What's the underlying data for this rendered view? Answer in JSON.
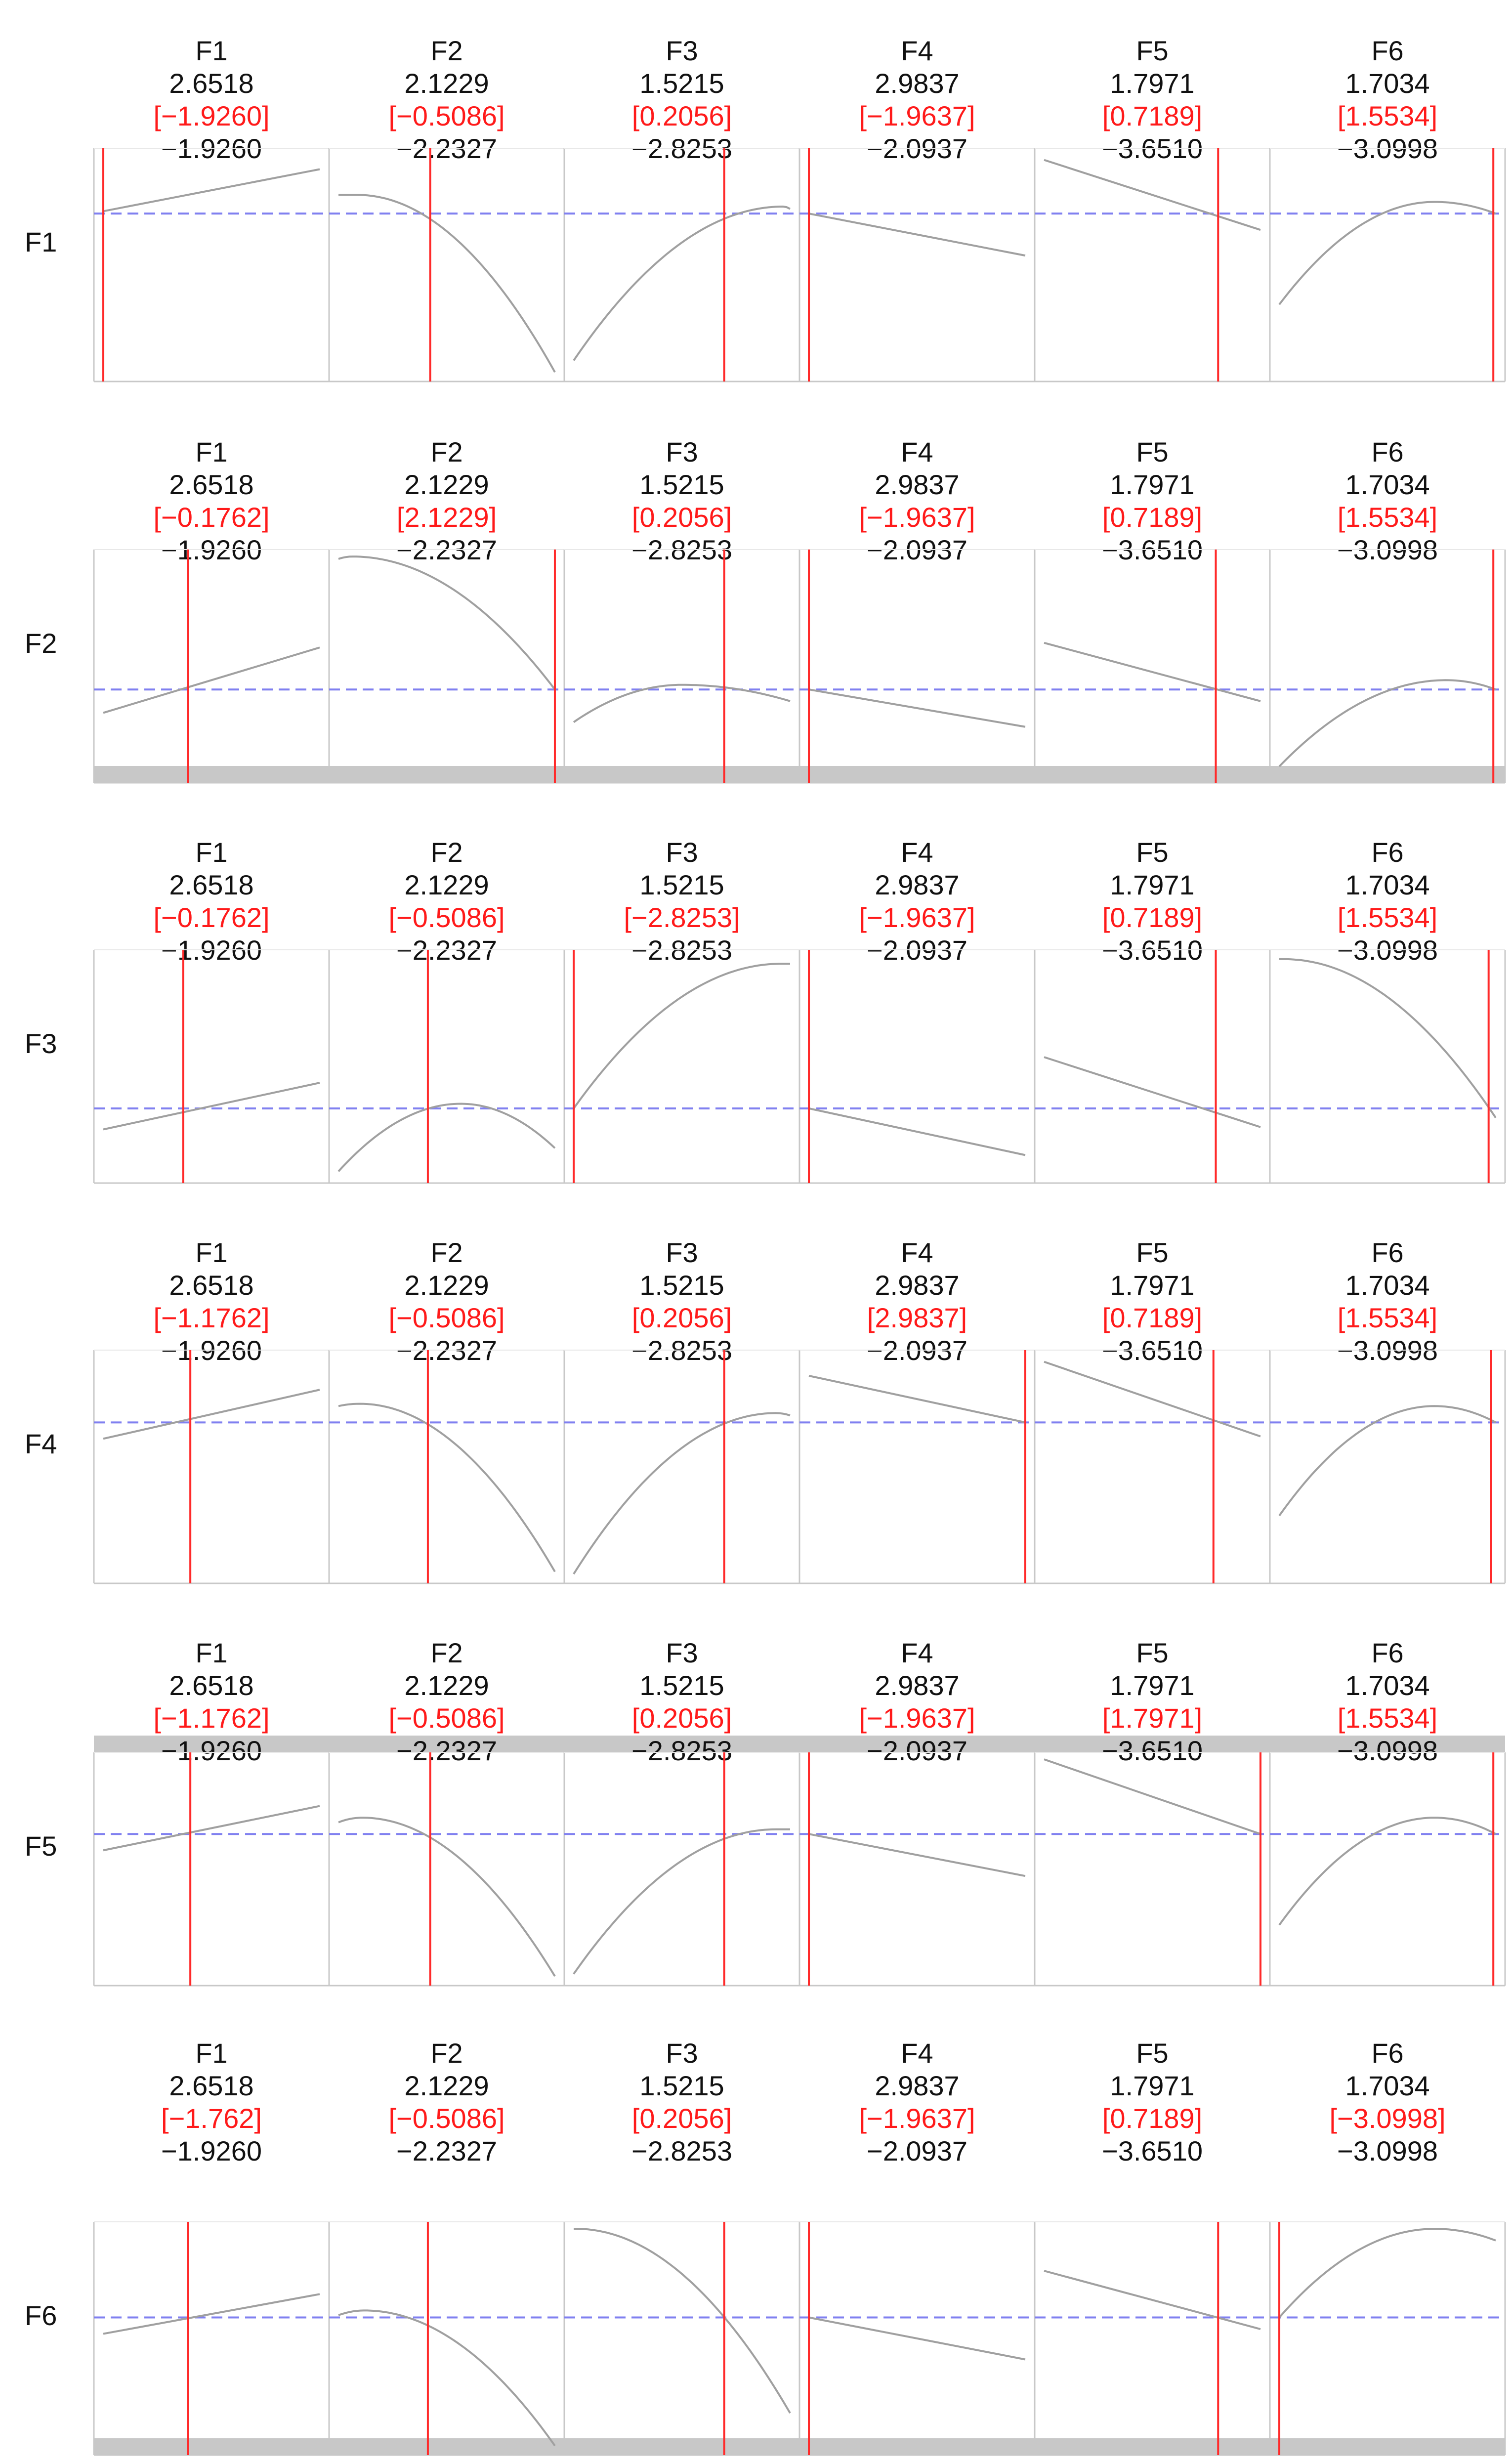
{
  "chart_data": {
    "type": "line",
    "description_rows": [
      "F1",
      "F2",
      "F3",
      "F4",
      "F5",
      "F6"
    ],
    "colors": {
      "curve": "#a0a0a0",
      "current_marker": "#ff2a2a",
      "reference": "#8080f0",
      "frame": "#c8c8c8",
      "header_text": "#111111",
      "header_highlight": "#ff1a1a",
      "band": "#c8c8c8"
    },
    "rows": [
      {
        "label": "F1",
        "band": "none",
        "cols": [
          {
            "name": "F1",
            "v1": "2.6518",
            "sel": "[−1.9260]",
            "v3": "−1.9260",
            "curve": "linear",
            "y_start": 0.27,
            "y_end": 0.09,
            "marker": 0.04,
            "ref_y": 0.28
          },
          {
            "name": "F2",
            "v1": "2.1229",
            "sel": "[−0.5086]",
            "v3": "−2.2327",
            "curve": "concave",
            "y_start": 0.2,
            "y_end": 0.96,
            "peak_x": 0.12,
            "peak_y": 0.2,
            "marker": 0.43,
            "ref_y": 0.28
          },
          {
            "name": "F3",
            "v1": "1.5215",
            "sel": "[0.2056]",
            "v3": "−2.8253",
            "curve": "concave",
            "y_start": 0.91,
            "y_end": 0.26,
            "peak_x": 0.93,
            "peak_y": 0.25,
            "marker": 0.68,
            "ref_y": 0.28
          },
          {
            "name": "F4",
            "v1": "2.9837",
            "sel": "[−1.9637]",
            "v3": "−2.0937",
            "curve": "linear",
            "y_start": 0.28,
            "y_end": 0.46,
            "marker": 0.04,
            "ref_y": 0.28
          },
          {
            "name": "F5",
            "v1": "1.7971",
            "sel": "[0.7189]",
            "v3": "−3.6510",
            "curve": "linear",
            "y_start": 0.05,
            "y_end": 0.35,
            "marker": 0.78,
            "ref_y": 0.28
          },
          {
            "name": "F6",
            "v1": "1.7034",
            "sel": "[1.5534]",
            "v3": "−3.0998",
            "curve": "concave",
            "y_start": 0.67,
            "y_end": 0.28,
            "peak_x": 0.7,
            "peak_y": 0.23,
            "marker": 0.95,
            "ref_y": 0.28
          }
        ]
      },
      {
        "label": "F2",
        "band": "bottom",
        "cols": [
          {
            "name": "F1",
            "v1": "2.6518",
            "sel": "[−0.1762]",
            "v3": "−1.9260",
            "curve": "linear",
            "y_start": 0.7,
            "y_end": 0.42,
            "marker": 0.4,
            "ref_y": 0.6
          },
          {
            "name": "F2",
            "v1": "2.1229",
            "sel": "[2.1229]",
            "v3": "−2.2327",
            "curve": "concave",
            "y_start": 0.04,
            "y_end": 0.6,
            "peak_x": 0.1,
            "peak_y": 0.03,
            "marker": 0.96,
            "ref_y": 0.6
          },
          {
            "name": "F3",
            "v1": "1.5215",
            "sel": "[0.2056]",
            "v3": "−2.8253",
            "curve": "concave",
            "y_start": 0.74,
            "y_end": 0.65,
            "peak_x": 0.5,
            "peak_y": 0.58,
            "marker": 0.68,
            "ref_y": 0.6
          },
          {
            "name": "F4",
            "v1": "2.9837",
            "sel": "[−1.9637]",
            "v3": "−2.0937",
            "curve": "linear",
            "y_start": 0.6,
            "y_end": 0.76,
            "marker": 0.04,
            "ref_y": 0.6
          },
          {
            "name": "F5",
            "v1": "1.7971",
            "sel": "[0.7189]",
            "v3": "−3.6510",
            "curve": "linear",
            "y_start": 0.4,
            "y_end": 0.65,
            "marker": 0.77,
            "ref_y": 0.6
          },
          {
            "name": "F6",
            "v1": "1.7034",
            "sel": "[1.5534]",
            "v3": "−3.0998",
            "curve": "concave",
            "y_start": 0.93,
            "y_end": 0.6,
            "peak_x": 0.75,
            "peak_y": 0.56,
            "marker": 0.95,
            "ref_y": 0.6
          }
        ]
      },
      {
        "label": "F3",
        "band": "none",
        "cols": [
          {
            "name": "F1",
            "v1": "2.6518",
            "sel": "[−0.1762]",
            "v3": "−1.9260",
            "curve": "linear",
            "y_start": 0.77,
            "y_end": 0.57,
            "marker": 0.38,
            "ref_y": 0.68
          },
          {
            "name": "F2",
            "v1": "2.1229",
            "sel": "[−0.5086]",
            "v3": "−2.2327",
            "curve": "concave",
            "y_start": 0.95,
            "y_end": 0.85,
            "peak_x": 0.56,
            "peak_y": 0.66,
            "marker": 0.42,
            "ref_y": 0.68
          },
          {
            "name": "F3",
            "v1": "1.5215",
            "sel": "[−2.8253]",
            "v3": "−2.8253",
            "curve": "concave",
            "y_start": 0.68,
            "y_end": 0.06,
            "peak_x": 0.92,
            "peak_y": 0.06,
            "marker": 0.04,
            "ref_y": 0.68
          },
          {
            "name": "F4",
            "v1": "2.9837",
            "sel": "[−1.9637]",
            "v3": "−2.0937",
            "curve": "linear",
            "y_start": 0.68,
            "y_end": 0.88,
            "marker": 0.04,
            "ref_y": 0.68
          },
          {
            "name": "F5",
            "v1": "1.7971",
            "sel": "[0.7189]",
            "v3": "−3.6510",
            "curve": "linear",
            "y_start": 0.46,
            "y_end": 0.76,
            "marker": 0.77,
            "ref_y": 0.68
          },
          {
            "name": "F6",
            "v1": "1.7034",
            "sel": "[1.5534]",
            "v3": "−3.0998",
            "curve": "concave",
            "y_start": 0.04,
            "y_end": 0.72,
            "peak_x": 0.06,
            "peak_y": 0.04,
            "marker": 0.93,
            "ref_y": 0.68
          }
        ]
      },
      {
        "label": "F4",
        "band": "none",
        "cols": [
          {
            "name": "F1",
            "v1": "2.6518",
            "sel": "[−1.1762]",
            "v3": "−1.9260",
            "curve": "linear",
            "y_start": 0.38,
            "y_end": 0.17,
            "marker": 0.41,
            "ref_y": 0.31
          },
          {
            "name": "F2",
            "v1": "2.1229",
            "sel": "[−0.5086]",
            "v3": "−2.2327",
            "curve": "concave",
            "y_start": 0.24,
            "y_end": 0.95,
            "peak_x": 0.13,
            "peak_y": 0.23,
            "marker": 0.42,
            "ref_y": 0.31
          },
          {
            "name": "F3",
            "v1": "1.5215",
            "sel": "[0.2056]",
            "v3": "−2.8253",
            "curve": "concave",
            "y_start": 0.96,
            "y_end": 0.28,
            "peak_x": 0.9,
            "peak_y": 0.27,
            "marker": 0.68,
            "ref_y": 0.31
          },
          {
            "name": "F4",
            "v1": "2.9837",
            "sel": "[2.9837]",
            "v3": "−2.0937",
            "curve": "linear",
            "y_start": 0.11,
            "y_end": 0.31,
            "marker": 0.96,
            "ref_y": 0.31
          },
          {
            "name": "F5",
            "v1": "1.7971",
            "sel": "[0.7189]",
            "v3": "−3.6510",
            "curve": "linear",
            "y_start": 0.05,
            "y_end": 0.37,
            "marker": 0.76,
            "ref_y": 0.31
          },
          {
            "name": "F6",
            "v1": "1.7034",
            "sel": "[1.5534]",
            "v3": "−3.0998",
            "curve": "concave",
            "y_start": 0.71,
            "y_end": 0.31,
            "peak_x": 0.7,
            "peak_y": 0.24,
            "marker": 0.94,
            "ref_y": 0.31
          }
        ]
      },
      {
        "label": "F5",
        "band": "top",
        "cols": [
          {
            "name": "F1",
            "v1": "2.6518",
            "sel": "[−1.1762]",
            "v3": "−1.9260",
            "curve": "linear",
            "y_start": 0.42,
            "y_end": 0.23,
            "marker": 0.41,
            "ref_y": 0.35
          },
          {
            "name": "F2",
            "v1": "2.1229",
            "sel": "[−0.5086]",
            "v3": "−2.2327",
            "curve": "concave",
            "y_start": 0.3,
            "y_end": 0.96,
            "peak_x": 0.14,
            "peak_y": 0.28,
            "marker": 0.43,
            "ref_y": 0.35
          },
          {
            "name": "F3",
            "v1": "1.5215",
            "sel": "[0.2056]",
            "v3": "−2.8253",
            "curve": "concave",
            "y_start": 0.95,
            "y_end": 0.33,
            "peak_x": 0.9,
            "peak_y": 0.33,
            "marker": 0.68,
            "ref_y": 0.35
          },
          {
            "name": "F4",
            "v1": "2.9837",
            "sel": "[−1.9637]",
            "v3": "−2.0937",
            "curve": "linear",
            "y_start": 0.35,
            "y_end": 0.53,
            "marker": 0.04,
            "ref_y": 0.35
          },
          {
            "name": "F5",
            "v1": "1.7971",
            "sel": "[1.7971]",
            "v3": "−3.6510",
            "curve": "linear",
            "y_start": 0.03,
            "y_end": 0.35,
            "marker": 0.96,
            "ref_y": 0.35
          },
          {
            "name": "F6",
            "v1": "1.7034",
            "sel": "[1.5534]",
            "v3": "−3.0998",
            "curve": "concave",
            "y_start": 0.74,
            "y_end": 0.35,
            "peak_x": 0.7,
            "peak_y": 0.28,
            "marker": 0.95,
            "ref_y": 0.35
          }
        ]
      },
      {
        "label": "F6",
        "band": "bottom",
        "cols": [
          {
            "name": "F1",
            "v1": "2.6518",
            "sel": "[−1.762]",
            "v3": "−1.9260",
            "curve": "linear",
            "y_start": 0.48,
            "y_end": 0.31,
            "marker": 0.4,
            "ref_y": 0.41
          },
          {
            "name": "F2",
            "v1": "2.1229",
            "sel": "[−0.5086]",
            "v3": "−2.2327",
            "curve": "concave",
            "y_start": 0.4,
            "y_end": 0.96,
            "peak_x": 0.15,
            "peak_y": 0.38,
            "marker": 0.42,
            "ref_y": 0.41
          },
          {
            "name": "F3",
            "v1": "1.5215",
            "sel": "[0.2056]",
            "v3": "−2.8253",
            "curve": "concave",
            "y_start": 0.03,
            "y_end": 0.82,
            "peak_x": 0.05,
            "peak_y": 0.03,
            "marker": 0.68,
            "ref_y": 0.41
          },
          {
            "name": "F4",
            "v1": "2.9837",
            "sel": "[−1.9637]",
            "v3": "−2.0937",
            "curve": "linear",
            "y_start": 0.41,
            "y_end": 0.59,
            "marker": 0.04,
            "ref_y": 0.41
          },
          {
            "name": "F5",
            "v1": "1.7971",
            "sel": "[0.7189]",
            "v3": "−3.6510",
            "curve": "linear",
            "y_start": 0.21,
            "y_end": 0.46,
            "marker": 0.78,
            "ref_y": 0.41
          },
          {
            "name": "F6",
            "v1": "1.7034",
            "sel": "[−3.0998]",
            "v3": "−3.0998",
            "curve": "concave",
            "y_start": 0.41,
            "y_end": 0.08,
            "peak_x": 0.7,
            "peak_y": 0.03,
            "marker": 0.04,
            "ref_y": 0.41
          }
        ]
      }
    ]
  }
}
